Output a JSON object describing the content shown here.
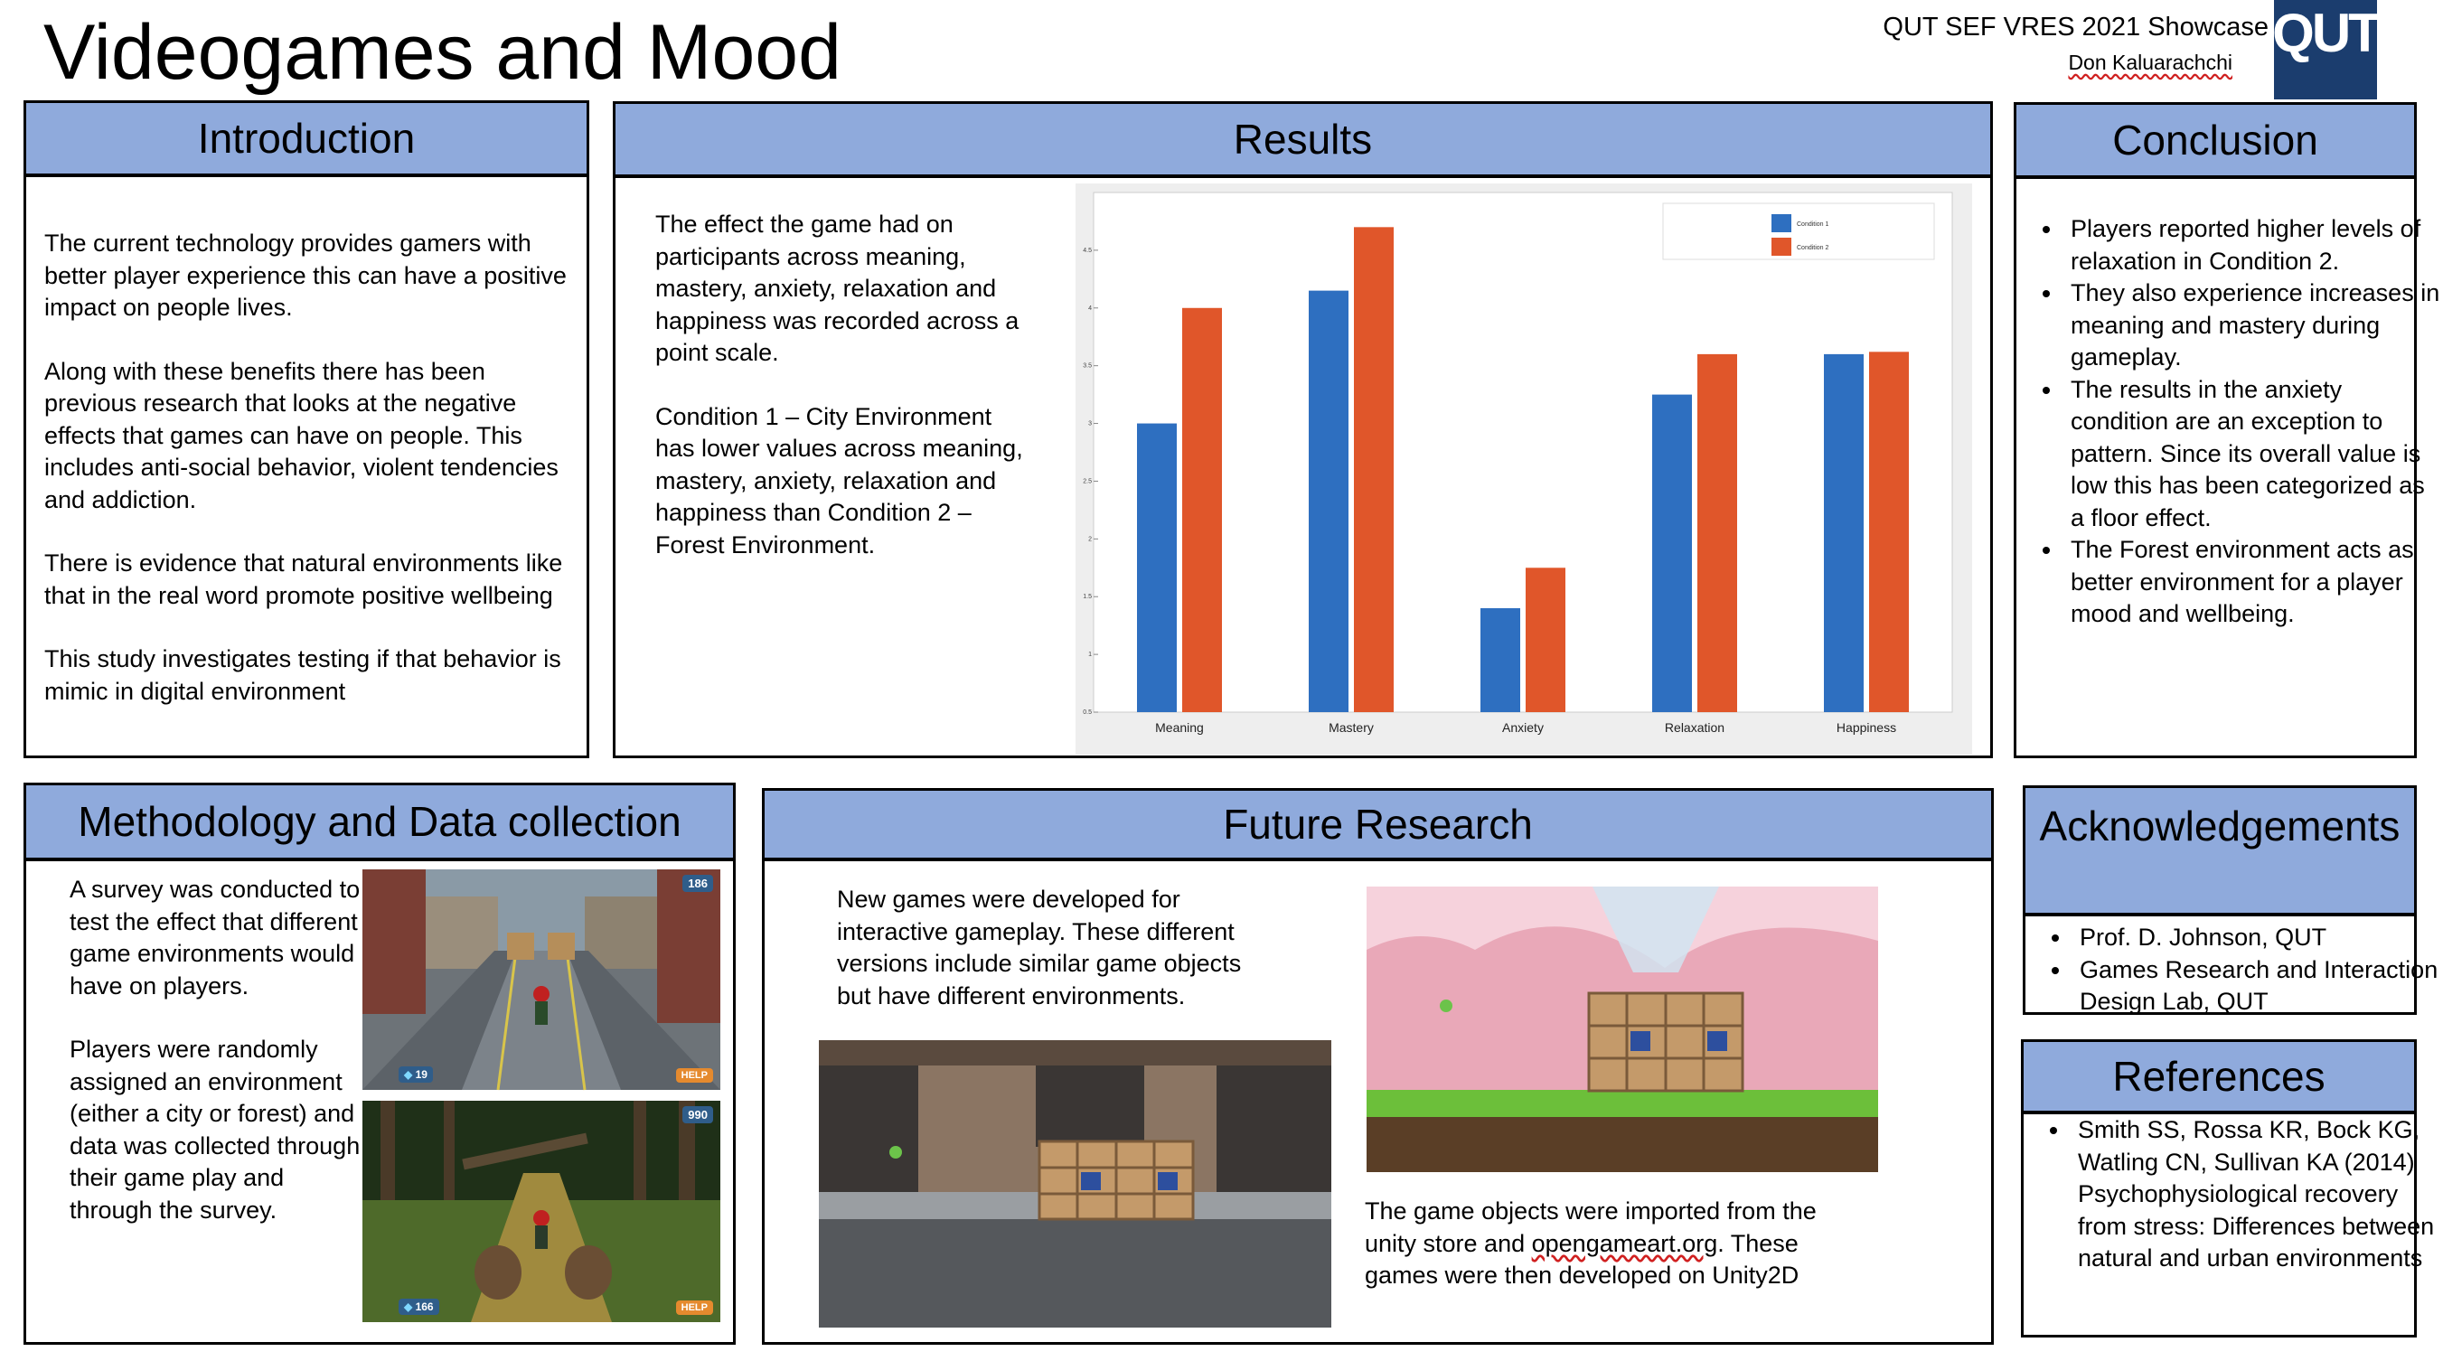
{
  "title": "Videogames and Mood",
  "showcase": "QUT SEF VRES 2021 Showcase",
  "author": "Don Kaluarachchi",
  "logo_text": "QUT",
  "introduction": {
    "heading": "Introduction",
    "paragraphs": [
      "The current technology provides gamers with better player experience this can have a positive impact on people lives.",
      "Along with these benefits there has been previous research that looks at the negative effects that games can have on people. This includes anti-social behavior, violent tendencies and addiction.",
      "There is evidence that natural environments like that in the real word promote positive wellbeing",
      "This study investigates testing if that behavior is mimic in digital environment"
    ]
  },
  "results": {
    "heading": "Results",
    "paragraphs": [
      "The effect the game had on participants across meaning, mastery, anxiety, relaxation and happiness was recorded across a point scale.",
      "Condition 1 – City Environment has lower values across meaning, mastery, anxiety, relaxation and happiness than Condition 2 – Forest Environment."
    ]
  },
  "chart_data": {
    "type": "bar",
    "categories": [
      "Meaning",
      "Mastery",
      "Anxiety",
      "Relaxation",
      "Happiness"
    ],
    "series": [
      {
        "name": "Condition 1",
        "color": "#2e6fc0",
        "values": [
          3.0,
          4.15,
          1.4,
          3.25,
          3.6
        ]
      },
      {
        "name": "Condition 2",
        "color": "#e0562a",
        "values": [
          4.0,
          4.7,
          1.75,
          3.6,
          3.62
        ]
      }
    ],
    "yticks": [
      "0.5",
      "1",
      "1.5",
      "2",
      "2.5",
      "3",
      "3.5",
      "4",
      "4.5"
    ],
    "ylim": [
      0.5,
      5
    ],
    "grid": false,
    "legend_position": "top-right"
  },
  "conclusion": {
    "heading": "Conclusion",
    "items": [
      "Players reported higher levels of relaxation in Condition 2.",
      "They also experience increases in meaning and mastery during gameplay.",
      "The results in the anxiety condition are an exception to pattern. Since its overall value is low this has been categorized as a floor effect.",
      "The Forest environment acts as better environment for a player mood and wellbeing."
    ]
  },
  "methodology": {
    "heading": "Methodology and Data collection",
    "paragraphs": [
      "A survey was conducted to test the effect that different game environments would have on players.",
      "Players were randomly assigned an environment (either a city or forest) and data was collected through their game play and through the survey."
    ],
    "city_screenshot": {
      "score": "186",
      "gems": "19",
      "help": "HELP"
    },
    "forest_screenshot": {
      "score": "990",
      "gems": "166",
      "help": "HELP"
    }
  },
  "future": {
    "heading": "Future Research",
    "text1": "New games were developed for interactive gameplay. These different versions include similar game objects but have different environments.",
    "text2_before": "The game objects were imported from the unity store and ",
    "text2_link": "opengameart.org",
    "text2_after": ". These games were then developed on Unity2D"
  },
  "acknowledgements": {
    "heading": "Acknowledgements",
    "items": [
      "Prof. D. Johnson, QUT",
      "Games Research and Interaction Design Lab, QUT"
    ]
  },
  "references": {
    "heading": "References",
    "items": [
      "Smith SS, Rossa KR, Bock KG, Watling CN, Sullivan KA (2014) Psychophysiological recovery from stress: Differences between natural and urban environments"
    ]
  }
}
